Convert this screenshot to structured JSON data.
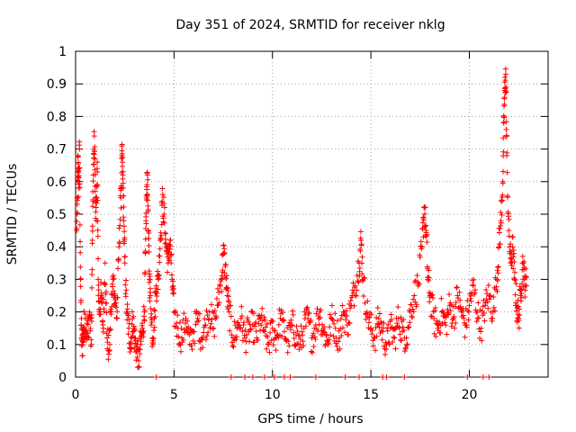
{
  "chart_data": {
    "type": "scatter",
    "title": "Day 351 of 2024, SRMTID for receiver nklg",
    "xlabel": "GPS time / hours",
    "ylabel": "SRMTID / TECUs",
    "xlim": [
      0,
      24
    ],
    "ylim": [
      0,
      1
    ],
    "xticks": [
      0,
      5,
      10,
      15,
      20
    ],
    "yticks": [
      0,
      0.1,
      0.2,
      0.3,
      0.4,
      0.5,
      0.6,
      0.7,
      0.8,
      0.9,
      1
    ],
    "grid": true,
    "marker": "+",
    "color": "#ff0000",
    "series": [
      {
        "name": "SRMTID",
        "points": [
          [
            0.05,
            0.45
          ],
          [
            0.1,
            0.55
          ],
          [
            0.12,
            0.68
          ],
          [
            0.15,
            0.58
          ],
          [
            0.2,
            0.7
          ],
          [
            0.25,
            0.3
          ],
          [
            0.3,
            0.12
          ],
          [
            0.35,
            0.1
          ],
          [
            0.4,
            0.15
          ],
          [
            0.5,
            0.18
          ],
          [
            0.6,
            0.12
          ],
          [
            0.7,
            0.2
          ],
          [
            0.8,
            0.1
          ],
          [
            0.85,
            0.42
          ],
          [
            0.9,
            0.62
          ],
          [
            0.95,
            0.74
          ],
          [
            1.0,
            0.57
          ],
          [
            1.05,
            0.48
          ],
          [
            1.1,
            0.66
          ],
          [
            1.15,
            0.3
          ],
          [
            1.2,
            0.2
          ],
          [
            1.3,
            0.25
          ],
          [
            1.4,
            0.15
          ],
          [
            1.5,
            0.35
          ],
          [
            1.6,
            0.12
          ],
          [
            1.7,
            0.08
          ],
          [
            1.8,
            0.2
          ],
          [
            1.9,
            0.3
          ],
          [
            2.0,
            0.25
          ],
          [
            2.1,
            0.18
          ],
          [
            2.2,
            0.4
          ],
          [
            2.3,
            0.55
          ],
          [
            2.35,
            0.68
          ],
          [
            2.4,
            0.62
          ],
          [
            2.45,
            0.48
          ],
          [
            2.5,
            0.35
          ],
          [
            2.6,
            0.2
          ],
          [
            2.7,
            0.15
          ],
          [
            2.8,
            0.1
          ],
          [
            2.9,
            0.18
          ],
          [
            3.0,
            0.12
          ],
          [
            3.1,
            0.08
          ],
          [
            3.2,
            0.05
          ],
          [
            3.3,
            0.1
          ],
          [
            3.4,
            0.15
          ],
          [
            3.5,
            0.2
          ],
          [
            3.55,
            0.38
          ],
          [
            3.6,
            0.55
          ],
          [
            3.65,
            0.62
          ],
          [
            3.7,
            0.45
          ],
          [
            3.75,
            0.3
          ],
          [
            3.8,
            0.25
          ],
          [
            3.9,
            0.12
          ],
          [
            4.0,
            0.18
          ],
          [
            4.1,
            0.28
          ],
          [
            4.2,
            0.3
          ],
          [
            4.3,
            0.42
          ],
          [
            4.4,
            0.54
          ],
          [
            4.5,
            0.5
          ],
          [
            4.6,
            0.4
          ],
          [
            4.7,
            0.35
          ],
          [
            4.8,
            0.42
          ],
          [
            4.9,
            0.3
          ],
          [
            5.0,
            0.2
          ],
          [
            5.2,
            0.15
          ],
          [
            5.4,
            0.12
          ],
          [
            5.6,
            0.18
          ],
          [
            5.8,
            0.1
          ],
          [
            6.0,
            0.14
          ],
          [
            6.2,
            0.18
          ],
          [
            6.4,
            0.12
          ],
          [
            6.6,
            0.16
          ],
          [
            6.8,
            0.2
          ],
          [
            7.0,
            0.15
          ],
          [
            7.2,
            0.22
          ],
          [
            7.4,
            0.3
          ],
          [
            7.5,
            0.38
          ],
          [
            7.6,
            0.34
          ],
          [
            7.7,
            0.25
          ],
          [
            7.8,
            0.2
          ],
          [
            8.0,
            0.12
          ],
          [
            8.2,
            0.15
          ],
          [
            8.4,
            0.18
          ],
          [
            8.6,
            0.12
          ],
          [
            8.8,
            0.14
          ],
          [
            9.0,
            0.16
          ],
          [
            9.2,
            0.12
          ],
          [
            9.4,
            0.18
          ],
          [
            9.6,
            0.14
          ],
          [
            9.8,
            0.1
          ],
          [
            10.0,
            0.15
          ],
          [
            10.2,
            0.12
          ],
          [
            10.4,
            0.18
          ],
          [
            10.6,
            0.14
          ],
          [
            10.8,
            0.11
          ],
          [
            11.0,
            0.16
          ],
          [
            11.2,
            0.13
          ],
          [
            11.4,
            0.1
          ],
          [
            11.6,
            0.15
          ],
          [
            11.8,
            0.18
          ],
          [
            12.0,
            0.12
          ],
          [
            12.2,
            0.16
          ],
          [
            12.4,
            0.2
          ],
          [
            12.6,
            0.14
          ],
          [
            12.8,
            0.11
          ],
          [
            13.0,
            0.18
          ],
          [
            13.2,
            0.15
          ],
          [
            13.4,
            0.12
          ],
          [
            13.6,
            0.2
          ],
          [
            13.8,
            0.16
          ],
          [
            14.0,
            0.22
          ],
          [
            14.2,
            0.28
          ],
          [
            14.4,
            0.35
          ],
          [
            14.5,
            0.42
          ],
          [
            14.6,
            0.3
          ],
          [
            14.8,
            0.2
          ],
          [
            15.0,
            0.15
          ],
          [
            15.2,
            0.12
          ],
          [
            15.4,
            0.18
          ],
          [
            15.6,
            0.14
          ],
          [
            15.8,
            0.1
          ],
          [
            16.0,
            0.15
          ],
          [
            16.2,
            0.12
          ],
          [
            16.4,
            0.18
          ],
          [
            16.6,
            0.14
          ],
          [
            16.8,
            0.12
          ],
          [
            17.0,
            0.2
          ],
          [
            17.2,
            0.25
          ],
          [
            17.4,
            0.28
          ],
          [
            17.6,
            0.4
          ],
          [
            17.7,
            0.52
          ],
          [
            17.8,
            0.45
          ],
          [
            17.9,
            0.3
          ],
          [
            18.0,
            0.25
          ],
          [
            18.2,
            0.18
          ],
          [
            18.4,
            0.15
          ],
          [
            18.6,
            0.2
          ],
          [
            18.8,
            0.16
          ],
          [
            19.0,
            0.22
          ],
          [
            19.2,
            0.18
          ],
          [
            19.4,
            0.25
          ],
          [
            19.6,
            0.2
          ],
          [
            19.8,
            0.16
          ],
          [
            20.0,
            0.22
          ],
          [
            20.2,
            0.28
          ],
          [
            20.4,
            0.2
          ],
          [
            20.6,
            0.15
          ],
          [
            20.8,
            0.22
          ],
          [
            21.0,
            0.25
          ],
          [
            21.2,
            0.2
          ],
          [
            21.4,
            0.3
          ],
          [
            21.5,
            0.4
          ],
          [
            21.6,
            0.48
          ],
          [
            21.7,
            0.6
          ],
          [
            21.75,
            0.78
          ],
          [
            21.8,
            0.88
          ],
          [
            21.85,
            0.93
          ],
          [
            21.9,
            0.68
          ],
          [
            22.0,
            0.45
          ],
          [
            22.1,
            0.35
          ],
          [
            22.2,
            0.4
          ],
          [
            22.3,
            0.3
          ],
          [
            22.4,
            0.22
          ],
          [
            22.5,
            0.18
          ],
          [
            22.6,
            0.25
          ],
          [
            22.7,
            0.35
          ],
          [
            22.8,
            0.3
          ],
          [
            22.9,
            0.28
          ]
        ]
      }
    ],
    "zero_marks_x": [
      4.1,
      7.9,
      8.6,
      9.0,
      9.6,
      10.1,
      10.6,
      10.9,
      12.2,
      13.7,
      14.4,
      15.6,
      15.8,
      16.7,
      19.9,
      20.7,
      21.0
    ]
  }
}
